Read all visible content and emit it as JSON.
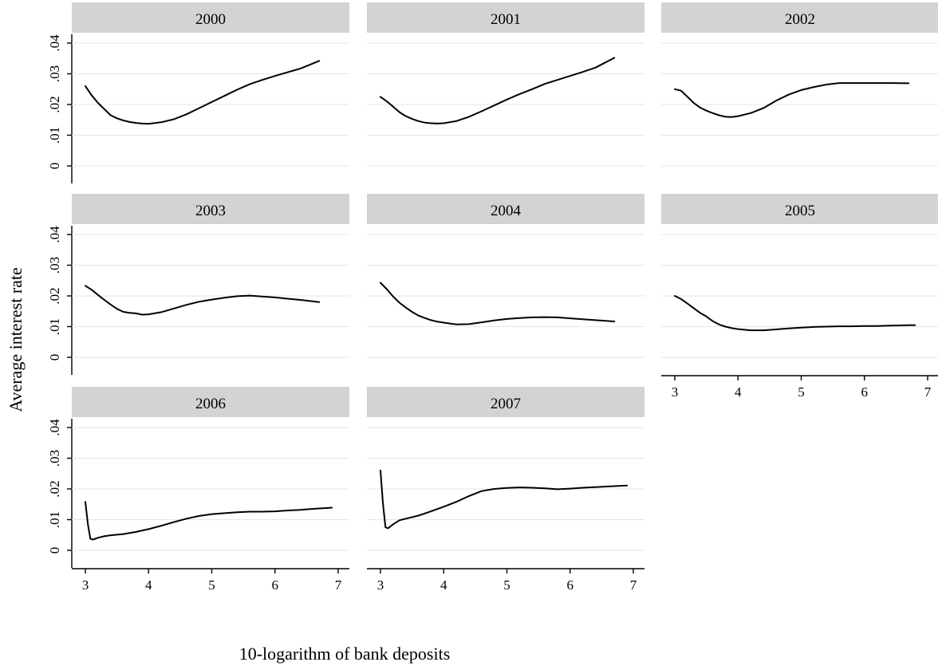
{
  "chart_data": {
    "type": "line",
    "title": "",
    "xlabel": "10-logarithm of bank deposits",
    "ylabel": "Average interest rate",
    "xlim": [
      3,
      7
    ],
    "ylim": [
      0,
      0.04
    ],
    "x_ticks": [
      3,
      4,
      5,
      6,
      7
    ],
    "x_tick_labels": [
      "3",
      "4",
      "5",
      "6",
      "7"
    ],
    "y_ticks": [
      0,
      0.01,
      0.02,
      0.03,
      0.04
    ],
    "y_tick_labels": [
      "0",
      ".01",
      ".02",
      ".03",
      ".04"
    ],
    "grid": true,
    "panels": [
      {
        "name": "2000",
        "x": [
          3.0,
          3.1,
          3.2,
          3.3,
          3.4,
          3.5,
          3.6,
          3.7,
          3.8,
          3.9,
          4.0,
          4.2,
          4.4,
          4.6,
          4.8,
          5.0,
          5.2,
          5.4,
          5.6,
          5.8,
          6.0,
          6.2,
          6.4,
          6.7
        ],
        "values": [
          0.026,
          0.023,
          0.0205,
          0.0185,
          0.0165,
          0.0155,
          0.0148,
          0.0143,
          0.014,
          0.0138,
          0.0137,
          0.0142,
          0.0152,
          0.0168,
          0.0188,
          0.0208,
          0.0228,
          0.0248,
          0.0266,
          0.028,
          0.0293,
          0.0305,
          0.0317,
          0.0342
        ]
      },
      {
        "name": "2001",
        "x": [
          3.0,
          3.1,
          3.2,
          3.3,
          3.4,
          3.5,
          3.6,
          3.7,
          3.8,
          3.9,
          4.0,
          4.2,
          4.4,
          4.6,
          4.8,
          5.0,
          5.2,
          5.4,
          5.6,
          5.8,
          6.0,
          6.2,
          6.4,
          6.7
        ],
        "values": [
          0.0225,
          0.021,
          0.0193,
          0.0175,
          0.0162,
          0.0153,
          0.0146,
          0.0141,
          0.0139,
          0.0138,
          0.0139,
          0.0146,
          0.016,
          0.0178,
          0.0197,
          0.0216,
          0.0234,
          0.025,
          0.0267,
          0.028,
          0.0293,
          0.0306,
          0.032,
          0.0352
        ]
      },
      {
        "name": "2002",
        "x": [
          3.0,
          3.1,
          3.2,
          3.3,
          3.4,
          3.5,
          3.6,
          3.7,
          3.8,
          3.9,
          4.0,
          4.2,
          4.4,
          4.6,
          4.8,
          5.0,
          5.2,
          5.4,
          5.6,
          5.8,
          6.0,
          6.2,
          6.4,
          6.7
        ],
        "values": [
          0.025,
          0.0245,
          0.0225,
          0.0205,
          0.019,
          0.018,
          0.0172,
          0.0165,
          0.016,
          0.0159,
          0.0162,
          0.0172,
          0.0188,
          0.0212,
          0.0232,
          0.0247,
          0.0257,
          0.0265,
          0.027,
          0.027,
          0.027,
          0.027,
          0.027,
          0.0269
        ]
      },
      {
        "name": "2003",
        "x": [
          3.0,
          3.1,
          3.2,
          3.3,
          3.4,
          3.5,
          3.6,
          3.7,
          3.8,
          3.9,
          4.0,
          4.2,
          4.4,
          4.6,
          4.8,
          5.0,
          5.2,
          5.4,
          5.6,
          5.8,
          6.0,
          6.2,
          6.4,
          6.7
        ],
        "values": [
          0.0233,
          0.022,
          0.0203,
          0.0187,
          0.0172,
          0.0158,
          0.0148,
          0.0145,
          0.0143,
          0.0139,
          0.014,
          0.0147,
          0.0159,
          0.0171,
          0.0181,
          0.0188,
          0.0194,
          0.0199,
          0.0201,
          0.0198,
          0.0195,
          0.0191,
          0.0187,
          0.018
        ]
      },
      {
        "name": "2004",
        "x": [
          3.0,
          3.1,
          3.2,
          3.3,
          3.4,
          3.5,
          3.6,
          3.7,
          3.8,
          3.9,
          4.0,
          4.2,
          4.4,
          4.6,
          4.8,
          5.0,
          5.2,
          5.4,
          5.6,
          5.8,
          6.0,
          6.2,
          6.4,
          6.7
        ],
        "values": [
          0.0243,
          0.0222,
          0.0198,
          0.0178,
          0.0162,
          0.0148,
          0.0136,
          0.0128,
          0.0121,
          0.0116,
          0.0113,
          0.0107,
          0.0108,
          0.0114,
          0.012,
          0.0125,
          0.0128,
          0.013,
          0.0131,
          0.013,
          0.0127,
          0.0124,
          0.0121,
          0.0117
        ]
      },
      {
        "name": "2005",
        "x": [
          3.0,
          3.1,
          3.2,
          3.3,
          3.4,
          3.5,
          3.6,
          3.7,
          3.8,
          3.9,
          4.0,
          4.2,
          4.4,
          4.6,
          4.8,
          5.0,
          5.2,
          5.4,
          5.6,
          5.8,
          6.0,
          6.2,
          6.4,
          6.8
        ],
        "values": [
          0.02,
          0.019,
          0.0175,
          0.016,
          0.0145,
          0.0133,
          0.0118,
          0.0107,
          0.01,
          0.0095,
          0.0092,
          0.0088,
          0.0088,
          0.0091,
          0.0094,
          0.0097,
          0.0099,
          0.01,
          0.0101,
          0.0101,
          0.0102,
          0.0102,
          0.0103,
          0.0105
        ]
      },
      {
        "name": "2006",
        "x": [
          3.0,
          3.04,
          3.08,
          3.12,
          3.2,
          3.3,
          3.4,
          3.6,
          3.8,
          4.0,
          4.2,
          4.4,
          4.6,
          4.8,
          5.0,
          5.2,
          5.4,
          5.6,
          5.8,
          6.0,
          6.2,
          6.4,
          6.6,
          6.9
        ],
        "values": [
          0.0158,
          0.0085,
          0.0038,
          0.0035,
          0.0041,
          0.0046,
          0.0049,
          0.0053,
          0.006,
          0.0069,
          0.008,
          0.0092,
          0.0103,
          0.0112,
          0.0118,
          0.0121,
          0.0124,
          0.0126,
          0.0126,
          0.0127,
          0.013,
          0.0132,
          0.0135,
          0.0139
        ]
      },
      {
        "name": "2007",
        "x": [
          3.0,
          3.04,
          3.08,
          3.12,
          3.2,
          3.3,
          3.4,
          3.6,
          3.8,
          4.0,
          4.2,
          4.4,
          4.6,
          4.8,
          5.0,
          5.2,
          5.4,
          5.6,
          5.8,
          6.0,
          6.2,
          6.4,
          6.6,
          6.9
        ],
        "values": [
          0.026,
          0.015,
          0.0075,
          0.0072,
          0.0085,
          0.0098,
          0.0103,
          0.0113,
          0.0127,
          0.0142,
          0.0158,
          0.0177,
          0.0193,
          0.02,
          0.0203,
          0.0205,
          0.0204,
          0.0202,
          0.0199,
          0.0201,
          0.0204,
          0.0206,
          0.0208,
          0.0211
        ]
      }
    ]
  },
  "colors": {
    "strip_bg": "#d3d3d3",
    "grid": "#e6e6e6",
    "line": "#000000"
  }
}
